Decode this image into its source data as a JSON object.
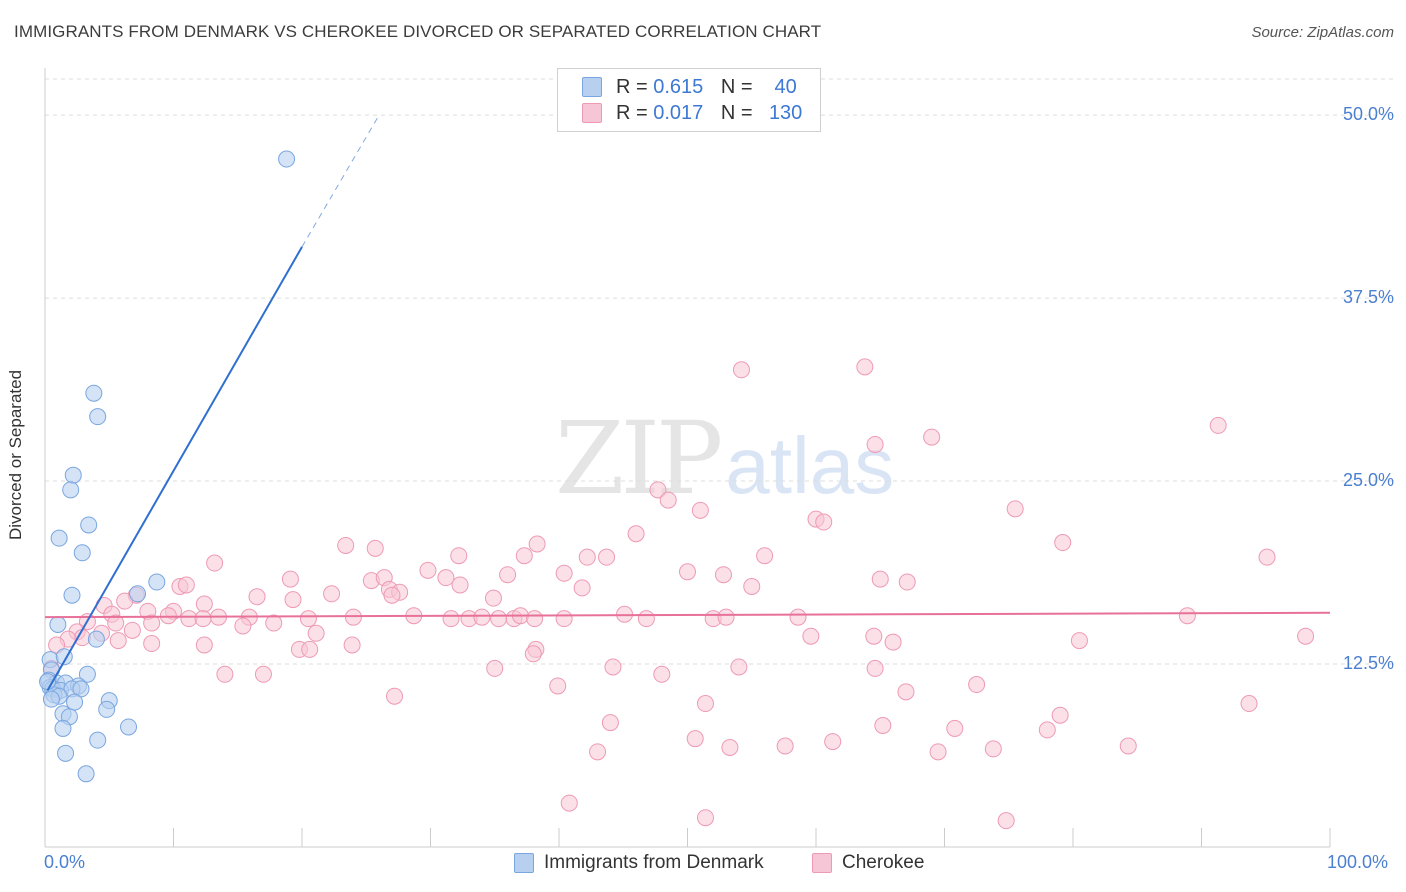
{
  "title": "IMMIGRANTS FROM DENMARK VS CHEROKEE DIVORCED OR SEPARATED CORRELATION CHART",
  "source": "Source: ZipAtlas.com",
  "watermark": {
    "zip": "ZIP",
    "atlas": "atlas"
  },
  "legend_top": {
    "rows": [
      {
        "r_label": "R =",
        "r_value": "0.615",
        "n_label": "N =",
        "n_value": "40"
      },
      {
        "r_label": "R =",
        "r_value": "0.017",
        "n_label": "N =",
        "n_value": "130"
      }
    ]
  },
  "legend_bottom": {
    "series1": "Immigrants from Denmark",
    "series2": "Cherokee"
  },
  "colors": {
    "blue_fill": "#b8d0f0",
    "blue_stroke": "#7aa6e0",
    "blue_line": "#2f6fd0",
    "pink_fill": "#f7c6d6",
    "pink_stroke": "#ee9ab5",
    "pink_line": "#e8719a",
    "grid": "#dddddd",
    "axis_text": "#4a7fd1"
  },
  "chart_data": {
    "type": "scatter",
    "title": "IMMIGRANTS FROM DENMARK VS CHEROKEE DIVORCED OR SEPARATED CORRELATION CHART",
    "xlabel": "",
    "ylabel": "Divorced or Separated",
    "xlim": [
      0,
      100
    ],
    "ylim": [
      0,
      50
    ],
    "x_tick_labels": [
      "0.0%",
      "100.0%"
    ],
    "y_ticks": [
      12.5,
      25.0,
      37.5,
      50.0
    ],
    "y_tick_labels": [
      "12.5%",
      "25.0%",
      "37.5%",
      "50.0%"
    ],
    "grid": true,
    "series": [
      {
        "name": "Immigrants from Denmark",
        "R": 0.615,
        "N": 40,
        "trend": {
          "x0": 0.2,
          "y0": 10.7,
          "x1": 20.0,
          "y1": 41.0,
          "dashed_to_x": 26.0,
          "dashed_to_y": 50.0
        },
        "points": [
          [
            18.8,
            47.0
          ],
          [
            3.8,
            31.0
          ],
          [
            4.1,
            29.4
          ],
          [
            2.2,
            25.4
          ],
          [
            2.0,
            24.4
          ],
          [
            3.4,
            22.0
          ],
          [
            1.1,
            21.1
          ],
          [
            2.9,
            20.1
          ],
          [
            8.7,
            18.1
          ],
          [
            7.2,
            17.3
          ],
          [
            2.1,
            17.2
          ],
          [
            1.0,
            15.2
          ],
          [
            4.0,
            14.2
          ],
          [
            0.4,
            12.8
          ],
          [
            1.5,
            13.0
          ],
          [
            0.5,
            12.1
          ],
          [
            3.3,
            11.8
          ],
          [
            0.3,
            11.4
          ],
          [
            0.9,
            11.2
          ],
          [
            1.6,
            11.2
          ],
          [
            2.6,
            11.0
          ],
          [
            0.4,
            10.9
          ],
          [
            0.6,
            10.8
          ],
          [
            1.2,
            10.7
          ],
          [
            2.1,
            10.8
          ],
          [
            2.8,
            10.8
          ],
          [
            0.7,
            10.4
          ],
          [
            1.1,
            10.3
          ],
          [
            0.5,
            10.1
          ],
          [
            2.3,
            9.9
          ],
          [
            5.0,
            10.0
          ],
          [
            4.8,
            9.4
          ],
          [
            1.4,
            9.1
          ],
          [
            1.9,
            8.9
          ],
          [
            1.4,
            8.1
          ],
          [
            6.5,
            8.2
          ],
          [
            4.1,
            7.3
          ],
          [
            1.6,
            6.4
          ],
          [
            3.2,
            5.0
          ],
          [
            0.2,
            11.3
          ]
        ]
      },
      {
        "name": "Cherokee",
        "R": 0.017,
        "N": 130,
        "trend": {
          "x0": 0.0,
          "y0": 15.7,
          "x1": 100.0,
          "y1": 16.0
        },
        "points": [
          [
            54.2,
            32.6
          ],
          [
            63.8,
            32.8
          ],
          [
            69.0,
            28.0
          ],
          [
            64.6,
            27.5
          ],
          [
            91.3,
            28.8
          ],
          [
            47.7,
            24.4
          ],
          [
            48.5,
            23.7
          ],
          [
            51.0,
            23.0
          ],
          [
            60.0,
            22.4
          ],
          [
            60.6,
            22.2
          ],
          [
            75.5,
            23.1
          ],
          [
            46.0,
            21.4
          ],
          [
            79.2,
            20.8
          ],
          [
            95.1,
            19.8
          ],
          [
            23.4,
            20.6
          ],
          [
            25.7,
            20.4
          ],
          [
            32.2,
            19.9
          ],
          [
            37.3,
            19.9
          ],
          [
            38.3,
            20.7
          ],
          [
            42.2,
            19.8
          ],
          [
            43.7,
            19.8
          ],
          [
            56.0,
            19.9
          ],
          [
            13.2,
            19.4
          ],
          [
            19.1,
            18.3
          ],
          [
            25.4,
            18.2
          ],
          [
            26.4,
            18.4
          ],
          [
            29.8,
            18.9
          ],
          [
            31.2,
            18.4
          ],
          [
            36.0,
            18.6
          ],
          [
            40.4,
            18.7
          ],
          [
            50.0,
            18.8
          ],
          [
            52.8,
            18.6
          ],
          [
            55.0,
            17.8
          ],
          [
            65.0,
            18.3
          ],
          [
            67.1,
            18.1
          ],
          [
            10.5,
            17.8
          ],
          [
            11.0,
            17.9
          ],
          [
            7.1,
            17.2
          ],
          [
            16.5,
            17.1
          ],
          [
            22.3,
            17.3
          ],
          [
            26.8,
            17.6
          ],
          [
            27.6,
            17.4
          ],
          [
            27.0,
            17.2
          ],
          [
            32.3,
            17.9
          ],
          [
            34.9,
            17.0
          ],
          [
            41.8,
            17.7
          ],
          [
            6.2,
            16.8
          ],
          [
            8.0,
            16.1
          ],
          [
            10.0,
            16.1
          ],
          [
            13.5,
            15.7
          ],
          [
            15.9,
            15.7
          ],
          [
            12.4,
            16.6
          ],
          [
            19.3,
            16.9
          ],
          [
            20.5,
            15.6
          ],
          [
            24.0,
            15.7
          ],
          [
            28.7,
            15.8
          ],
          [
            31.6,
            15.6
          ],
          [
            33.0,
            15.6
          ],
          [
            34.0,
            15.7
          ],
          [
            35.3,
            15.6
          ],
          [
            36.5,
            15.6
          ],
          [
            37.0,
            15.8
          ],
          [
            38.1,
            15.6
          ],
          [
            40.4,
            15.6
          ],
          [
            45.1,
            15.9
          ],
          [
            46.8,
            15.6
          ],
          [
            52.0,
            15.6
          ],
          [
            53.0,
            15.7
          ],
          [
            58.6,
            15.7
          ],
          [
            88.9,
            15.8
          ],
          [
            4.6,
            16.5
          ],
          [
            5.2,
            15.9
          ],
          [
            3.3,
            15.4
          ],
          [
            5.5,
            15.3
          ],
          [
            8.3,
            15.3
          ],
          [
            9.6,
            15.8
          ],
          [
            11.2,
            15.6
          ],
          [
            4.4,
            14.6
          ],
          [
            6.8,
            14.8
          ],
          [
            15.4,
            15.1
          ],
          [
            17.8,
            15.3
          ],
          [
            12.3,
            15.6
          ],
          [
            2.5,
            14.7
          ],
          [
            2.9,
            14.3
          ],
          [
            1.8,
            14.2
          ],
          [
            0.9,
            13.8
          ],
          [
            5.7,
            14.1
          ],
          [
            8.3,
            13.9
          ],
          [
            12.4,
            13.8
          ],
          [
            19.8,
            13.5
          ],
          [
            20.6,
            13.5
          ],
          [
            21.1,
            14.6
          ],
          [
            23.9,
            13.8
          ],
          [
            38.2,
            13.5
          ],
          [
            59.6,
            14.4
          ],
          [
            64.5,
            14.4
          ],
          [
            80.5,
            14.1
          ],
          [
            98.1,
            14.4
          ],
          [
            38.0,
            13.2
          ],
          [
            0.5,
            12.2
          ],
          [
            17.0,
            11.8
          ],
          [
            27.2,
            10.3
          ],
          [
            35.0,
            12.2
          ],
          [
            44.2,
            12.3
          ],
          [
            48.0,
            11.8
          ],
          [
            54.0,
            12.3
          ],
          [
            64.6,
            12.2
          ],
          [
            67.0,
            10.6
          ],
          [
            72.5,
            11.1
          ],
          [
            79.0,
            9.0
          ],
          [
            93.7,
            9.8
          ],
          [
            14.0,
            11.8
          ],
          [
            39.9,
            11.0
          ],
          [
            44.0,
            8.5
          ],
          [
            51.4,
            9.8
          ],
          [
            61.3,
            7.2
          ],
          [
            65.2,
            8.3
          ],
          [
            70.8,
            8.1
          ],
          [
            73.8,
            6.7
          ],
          [
            84.3,
            6.9
          ],
          [
            50.6,
            7.4
          ],
          [
            53.3,
            6.8
          ],
          [
            57.6,
            6.9
          ],
          [
            69.5,
            6.5
          ],
          [
            74.8,
            1.8
          ],
          [
            43.0,
            6.5
          ],
          [
            40.8,
            3.0
          ],
          [
            51.4,
            2.0
          ],
          [
            78.0,
            8.0
          ],
          [
            66.0,
            14.0
          ]
        ]
      }
    ]
  }
}
